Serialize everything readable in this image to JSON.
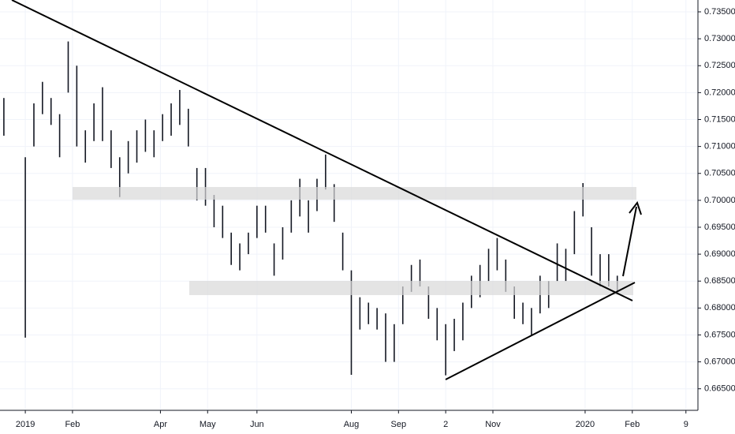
{
  "chart_data": {
    "type": "range-bar",
    "color": "#131722",
    "grid": true,
    "xlim": [
      -11.8,
      313.6
    ],
    "ylim": [
      0.661,
      0.7372
    ],
    "xticks": [
      {
        "value": 0,
        "label": "2019"
      },
      {
        "value": 22,
        "label": "Feb"
      },
      {
        "value": 63,
        "label": "Apr"
      },
      {
        "value": 85,
        "label": "May"
      },
      {
        "value": 108,
        "label": "Jun"
      },
      {
        "value": 152,
        "label": "Aug"
      },
      {
        "value": 174,
        "label": "Sep"
      },
      {
        "value": 196,
        "label": "2"
      },
      {
        "value": 218,
        "label": "Nov"
      },
      {
        "value": 261,
        "label": "2020"
      },
      {
        "value": 283,
        "label": "Feb"
      },
      {
        "value": 308,
        "label": "9"
      }
    ],
    "yticks": [
      {
        "value": 0.665,
        "label": "0.66500"
      },
      {
        "value": 0.67,
        "label": "0.67000"
      },
      {
        "value": 0.675,
        "label": "0.67500"
      },
      {
        "value": 0.68,
        "label": "0.68000"
      },
      {
        "value": 0.685,
        "label": "0.68500"
      },
      {
        "value": 0.69,
        "label": "0.69000"
      },
      {
        "value": 0.695,
        "label": "0.69500"
      },
      {
        "value": 0.7,
        "label": "0.70000"
      },
      {
        "value": 0.705,
        "label": "0.70500"
      },
      {
        "value": 0.71,
        "label": "0.71000"
      },
      {
        "value": 0.715,
        "label": "0.71500"
      },
      {
        "value": 0.72,
        "label": "0.72000"
      },
      {
        "value": 0.725,
        "label": "0.72500"
      },
      {
        "value": 0.73,
        "label": "0.73000"
      },
      {
        "value": 0.735,
        "label": "0.73500"
      }
    ],
    "x": [
      -10,
      0,
      4,
      8,
      12,
      16,
      20,
      24,
      28,
      32,
      36,
      40,
      44,
      48,
      52,
      56,
      60,
      64,
      68,
      72,
      76,
      80,
      84,
      88,
      92,
      96,
      100,
      104,
      108,
      112,
      116,
      120,
      124,
      128,
      132,
      136,
      140,
      144,
      148,
      152,
      156,
      160,
      164,
      168,
      172,
      176,
      180,
      184,
      188,
      192,
      196,
      200,
      204,
      208,
      212,
      216,
      220,
      224,
      228,
      232,
      236,
      240,
      244,
      248,
      252,
      256,
      260,
      264,
      268,
      272,
      276
    ],
    "high": [
      0.719,
      0.708,
      0.718,
      0.722,
      0.719,
      0.716,
      0.7295,
      0.725,
      0.713,
      0.718,
      0.721,
      0.713,
      0.708,
      0.711,
      0.713,
      0.715,
      0.713,
      0.716,
      0.718,
      0.7205,
      0.717,
      0.706,
      0.706,
      0.701,
      0.699,
      0.694,
      0.692,
      0.694,
      0.699,
      0.699,
      0.692,
      0.695,
      0.7,
      0.704,
      0.7,
      0.704,
      0.7085,
      0.703,
      0.694,
      0.687,
      0.682,
      0.681,
      0.68,
      0.679,
      0.677,
      0.684,
      0.688,
      0.689,
      0.684,
      0.68,
      0.677,
      0.678,
      0.681,
      0.686,
      0.688,
      0.691,
      0.693,
      0.689,
      0.684,
      0.681,
      0.68,
      0.686,
      0.685,
      0.692,
      0.691,
      0.698,
      0.7032,
      0.695,
      0.69,
      0.69,
      0.686
    ],
    "low": [
      0.712,
      0.6745,
      0.71,
      0.716,
      0.714,
      0.708,
      0.72,
      0.71,
      0.707,
      0.711,
      0.711,
      0.706,
      0.7006,
      0.705,
      0.707,
      0.709,
      0.708,
      0.711,
      0.712,
      0.714,
      0.71,
      0.7,
      0.699,
      0.695,
      0.693,
      0.688,
      0.687,
      0.69,
      0.693,
      0.694,
      0.686,
      0.689,
      0.694,
      0.697,
      0.694,
      0.698,
      0.702,
      0.696,
      0.687,
      0.6676,
      0.676,
      0.677,
      0.676,
      0.67,
      0.67,
      0.677,
      0.683,
      0.684,
      0.678,
      0.674,
      0.6675,
      0.672,
      0.674,
      0.68,
      0.682,
      0.685,
      0.687,
      0.683,
      0.678,
      0.677,
      0.675,
      0.679,
      0.68,
      0.685,
      0.685,
      0.69,
      0.697,
      0.686,
      0.684,
      0.684,
      0.683
    ]
  }
}
